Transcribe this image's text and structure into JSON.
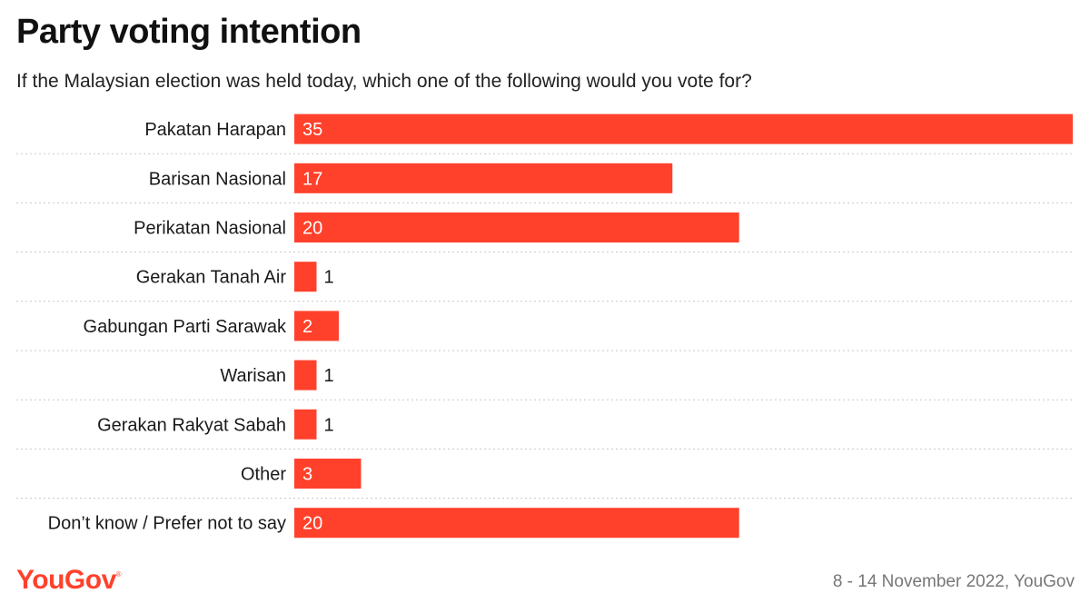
{
  "header": {
    "title": "Party voting intention",
    "subtitle": "If the Malaysian election was held today, which one of the following would you vote for?"
  },
  "footer": {
    "logo": "YouGov",
    "source": "8 - 14 November 2022, YouGov"
  },
  "colors": {
    "bar": "#ff412c",
    "label_inside": "#ffffff",
    "label_outside": "#1a1a1a",
    "separator": "#c8c8c8"
  },
  "chart_data": {
    "type": "bar",
    "orientation": "horizontal",
    "categories": [
      "Pakatan Harapan",
      "Barisan Nasional",
      "Perikatan Nasional",
      "Gerakan Tanah Air",
      "Gabungan Parti Sarawak",
      "Warisan",
      "Gerakan Rakyat Sabah",
      "Other",
      "Don’t know / Prefer not to say"
    ],
    "values": [
      35,
      17,
      20,
      1,
      2,
      1,
      1,
      3,
      20
    ],
    "title": "Party voting intention",
    "xlabel": "",
    "ylabel": "",
    "xlim": [
      0,
      35
    ],
    "grid": false,
    "legend": "none"
  }
}
